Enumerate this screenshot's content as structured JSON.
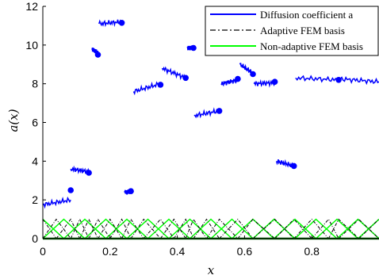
{
  "chart_data": {
    "type": "line",
    "xlabel": "x",
    "ylabel": "a(x)",
    "xlim": [
      0,
      1
    ],
    "ylim": [
      0,
      12
    ],
    "xticks": [
      "0",
      "0.2",
      "0.4",
      "0.6",
      "0.8"
    ],
    "xtick_values": [
      0,
      0.2,
      0.4,
      0.6,
      0.8
    ],
    "yticks": [
      "0",
      "2",
      "4",
      "6",
      "8",
      "10",
      "12"
    ],
    "ytick_values": [
      0,
      2,
      4,
      6,
      8,
      10,
      12
    ],
    "grid": false,
    "legend_position": "top-right",
    "legend": [
      {
        "name": "Diffusion coefficient a",
        "style": "solid",
        "color": "#0000ff"
      },
      {
        "name": "Adaptive FEM basis",
        "style": "dashdot",
        "color": "#000000"
      },
      {
        "name": "Non-adaptive FEM basis",
        "style": "solid",
        "color": "#00ff00"
      }
    ],
    "diffusion_segments": [
      {
        "x0": 0.0,
        "x1": 0.083,
        "y0": 1.75,
        "y1": 2.0,
        "dot": [
          0.083,
          2.5
        ]
      },
      {
        "x0": 0.083,
        "x1": 0.137,
        "y0": 3.6,
        "y1": 3.45,
        "dot": [
          0.137,
          3.4
        ]
      },
      {
        "x0": 0.146,
        "x1": 0.164,
        "y0": 9.8,
        "y1": 9.6,
        "dot": [
          0.164,
          9.5
        ]
      },
      {
        "x0": 0.167,
        "x1": 0.235,
        "y0": 11.1,
        "y1": 11.2,
        "dot": [
          0.235,
          11.15
        ]
      },
      {
        "x0": 0.243,
        "x1": 0.262,
        "y0": 2.4,
        "y1": 2.45,
        "dot": [
          0.262,
          2.45
        ]
      },
      {
        "x0": 0.27,
        "x1": 0.35,
        "y0": 7.6,
        "y1": 8.0,
        "dot": [
          0.35,
          7.95
        ]
      },
      {
        "x0": 0.355,
        "x1": 0.425,
        "y0": 8.8,
        "y1": 8.3,
        "dot": [
          0.425,
          8.3
        ]
      },
      {
        "x0": 0.43,
        "x1": 0.448,
        "y0": 9.85,
        "y1": 9.85,
        "dot": [
          0.448,
          9.85
        ]
      },
      {
        "x0": 0.45,
        "x1": 0.525,
        "y0": 6.35,
        "y1": 6.6,
        "dot": [
          0.525,
          6.6
        ]
      },
      {
        "x0": 0.53,
        "x1": 0.58,
        "y0": 8.0,
        "y1": 8.2,
        "dot": [
          0.58,
          8.25
        ]
      },
      {
        "x0": 0.586,
        "x1": 0.625,
        "y0": 9.0,
        "y1": 8.55,
        "dot": [
          0.625,
          8.5
        ]
      },
      {
        "x0": 0.628,
        "x1": 0.69,
        "y0": 8.0,
        "y1": 8.05,
        "dot": [
          0.69,
          8.1
        ]
      },
      {
        "x0": 0.695,
        "x1": 0.747,
        "y0": 4.0,
        "y1": 3.75,
        "dot": [
          0.747,
          3.75
        ]
      },
      {
        "x0": 0.752,
        "x1": 0.88,
        "y0": 8.3,
        "y1": 8.2,
        "dot": [
          0.88,
          8.2
        ]
      },
      {
        "x0": 0.885,
        "x1": 1.0,
        "y0": 8.25,
        "y1": 8.1,
        "dot": null
      }
    ],
    "adaptive_nodes": [
      0,
      0.04,
      0.083,
      0.11,
      0.137,
      0.164,
      0.2,
      0.235,
      0.262,
      0.3,
      0.35,
      0.39,
      0.425,
      0.448,
      0.487,
      0.525,
      0.58,
      0.625,
      0.69,
      0.747,
      0.8,
      0.85,
      0.88,
      0.94,
      1.0
    ],
    "nonadaptive_nodes": [
      0,
      0.0625,
      0.125,
      0.1875,
      0.25,
      0.3125,
      0.375,
      0.4375,
      0.5,
      0.5625,
      0.625,
      0.6875,
      0.75,
      0.8125,
      0.875,
      0.9375,
      1.0
    ],
    "basis_height": 1.0
  }
}
